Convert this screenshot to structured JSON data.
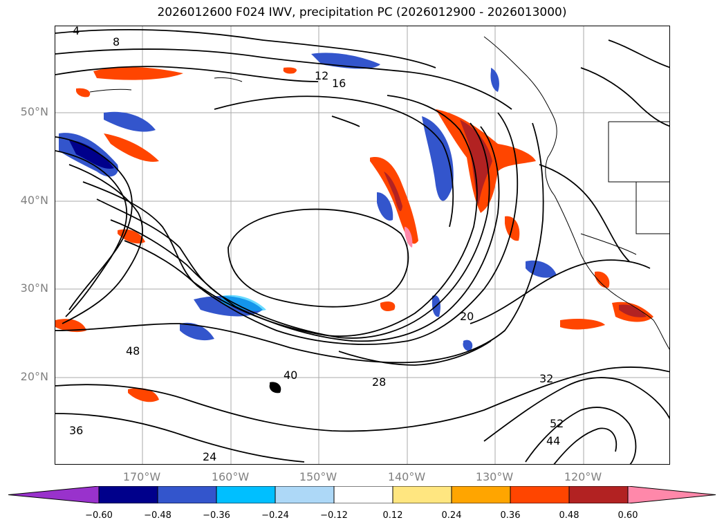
{
  "title": "2026012600 F024 IWV, precipitation PC (2026012900 - 2026013000)",
  "lat_labels": [
    "50°N",
    "40°N",
    "30°N",
    "20°N"
  ],
  "lon_labels": [
    "170°W",
    "160°W",
    "150°W",
    "140°W",
    "130°W",
    "120°W"
  ],
  "contour_labels": [
    "4",
    "8",
    "12",
    "16",
    "20",
    "24",
    "28",
    "32",
    "36",
    "40",
    "44",
    "48",
    "52"
  ],
  "colorbar": {
    "ticks": [
      "−0.60",
      "−0.48",
      "−0.36",
      "−0.24",
      "−0.12",
      "0.12",
      "0.24",
      "0.36",
      "0.48",
      "0.60"
    ],
    "colors": [
      "#9932cc",
      "#00008b",
      "#3355cc",
      "#00bfff",
      "#add8f7",
      "#ffffff",
      "#ffe680",
      "#ffa500",
      "#ff4500",
      "#b22222",
      "#ff88aa"
    ]
  },
  "colors": {
    "gridline": "#aaaaaa",
    "contour": "#000000",
    "axis_label": "#808080"
  }
}
